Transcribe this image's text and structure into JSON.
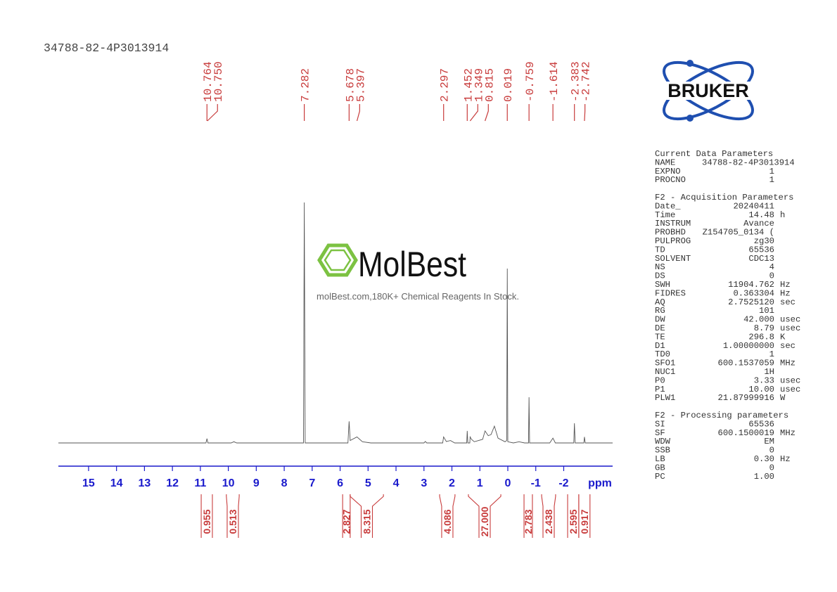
{
  "header": {
    "title": "34788-82-4P3013914"
  },
  "chart_data": {
    "type": "line",
    "x": [
      16.08,
      10.8,
      10.764,
      10.73,
      9.9,
      9.8,
      9.7,
      7.31,
      7.282,
      7.25,
      5.72,
      5.678,
      5.64,
      5.397,
      5.2,
      4.9,
      3.0,
      2.95,
      2.9,
      2.33,
      2.297,
      2.2,
      2.05,
      1.9,
      1.47,
      1.452,
      1.43,
      1.36,
      1.349,
      1.3,
      1.2,
      0.9,
      0.815,
      0.7,
      0.6,
      0.48,
      0.35,
      0.1,
      0.04,
      0.019,
      0.0,
      -0.2,
      -0.4,
      -0.6,
      -0.74,
      -0.759,
      -0.78,
      -1.5,
      -1.614,
      -1.7,
      -2.36,
      -2.383,
      -2.41,
      -2.72,
      -2.742,
      -2.77,
      -3.75
    ],
    "values": [
      0,
      0,
      1.8,
      0,
      0,
      0.5,
      0,
      0,
      100,
      0,
      0,
      9,
      1,
      2.5,
      0.5,
      0,
      0,
      0.6,
      0,
      0,
      2.5,
      0.6,
      1,
      0,
      0,
      5,
      0,
      0,
      2.5,
      1.5,
      0.5,
      1.5,
      5,
      3,
      3.5,
      7,
      2,
      0.5,
      1,
      72.5,
      0.5,
      0,
      0.5,
      0,
      0,
      19,
      0,
      0,
      2,
      0,
      0,
      8.2,
      0,
      0,
      2.5,
      0,
      0
    ],
    "color": "#555555",
    "xlim": [
      16.08,
      -3.75
    ],
    "ylim": [
      0,
      100
    ],
    "xticks": [
      15,
      14,
      13,
      12,
      11,
      10,
      9,
      8,
      7,
      6,
      5,
      4,
      3,
      2,
      1,
      0,
      -1,
      -2
    ],
    "x_label": "ppm",
    "axis_color": "#1a1acc",
    "peaks": {
      "values": [
        10.764,
        10.75,
        7.282,
        5.678,
        5.397,
        2.297,
        1.452,
        1.349,
        0.815,
        0.019,
        -0.759,
        -1.614,
        -2.383,
        -2.742
      ],
      "value_labels": [
        "10.764",
        "10.750",
        "7.282",
        "5.678",
        "5.397",
        "2.297",
        "1.452",
        "1.349",
        "0.815",
        "0.019",
        "-0.759",
        "-1.614",
        "-2.383",
        "-2.742"
      ],
      "color": "#c83c3c"
    },
    "integrals": {
      "values": [
        0.955,
        0.513,
        2.827,
        8.315,
        4.086,
        27,
        2.783,
        2.438,
        2.595,
        0.917
      ],
      "value_labels": [
        "0.955",
        "0.513",
        "2.827",
        "8.315",
        "4.086",
        "27.000",
        "2.783",
        "2.438",
        "2.595",
        "0.917"
      ],
      "ranges": [
        [
          10.97,
          10.57
        ],
        [
          10.07,
          9.61
        ],
        [
          5.91,
          5.64
        ],
        [
          5.64,
          4.45
        ],
        [
          2.44,
          1.89
        ],
        [
          1.41,
          0.25
        ],
        [
          -0.58,
          -0.88
        ],
        [
          -1.21,
          -1.71
        ],
        [
          -2.14,
          -2.54
        ],
        [
          -2.54,
          -2.94
        ]
      ],
      "color": "#c83c3c"
    }
  },
  "logo": "BRUKER",
  "watermark": {
    "brand": "MolBest",
    "caption": "molBest.com,180K+ Chemical Reagents In Stock."
  },
  "parameters": [
    {
      "title": "Current Data Parameters",
      "rows": [
        {
          "name": "NAME",
          "value": "34788-82-4P3013914"
        },
        {
          "name": "EXPNO",
          "value": "1"
        },
        {
          "name": "PROCNO",
          "value": "1"
        }
      ]
    },
    {
      "title": "F2 - Acquisition Parameters",
      "rows": [
        {
          "name": "Date_",
          "value": "20240411"
        },
        {
          "name": "Time",
          "value": "14.48",
          "unit": "h"
        },
        {
          "name": "INSTRUM",
          "value": "Avance"
        },
        {
          "name": "PROBHD",
          "value": "Z154705_0134 ("
        },
        {
          "name": "PULPROG",
          "value": "zg30"
        },
        {
          "name": "TD",
          "value": "65536"
        },
        {
          "name": "SOLVENT",
          "value": "CDC13"
        },
        {
          "name": "NS",
          "value": "4"
        },
        {
          "name": "DS",
          "value": "0"
        },
        {
          "name": "SWH",
          "value": "11904.762",
          "unit": "Hz"
        },
        {
          "name": "FIDRES",
          "value": "0.363304",
          "unit": "Hz"
        },
        {
          "name": "AQ",
          "value": "2.7525120",
          "unit": "sec"
        },
        {
          "name": "RG",
          "value": "101"
        },
        {
          "name": "DW",
          "value": "42.000",
          "unit": "usec"
        },
        {
          "name": "DE",
          "value": "8.79",
          "unit": "usec"
        },
        {
          "name": "TE",
          "value": "296.8",
          "unit": "K"
        },
        {
          "name": "D1",
          "value": "1.00000000",
          "unit": "sec"
        },
        {
          "name": "TD0",
          "value": "1"
        },
        {
          "name": "SFO1",
          "value": "600.1537059",
          "unit": "MHz"
        },
        {
          "name": "NUC1",
          "value": "1H"
        },
        {
          "name": "P0",
          "value": "3.33",
          "unit": "usec"
        },
        {
          "name": "P1",
          "value": "10.00",
          "unit": "usec"
        },
        {
          "name": "PLW1",
          "value": "21.87999916",
          "unit": "W"
        }
      ]
    },
    {
      "title": "F2 - Processing parameters",
      "rows": [
        {
          "name": "SI",
          "value": "65536"
        },
        {
          "name": "SF",
          "value": "600.1500019",
          "unit": "MHz"
        },
        {
          "name": "WDW",
          "value": "EM"
        },
        {
          "name": "SSB",
          "value": "0"
        },
        {
          "name": "LB",
          "value": "0.30",
          "unit": "Hz"
        },
        {
          "name": "GB",
          "value": "0"
        },
        {
          "name": "PC",
          "value": "1.00"
        }
      ]
    }
  ]
}
